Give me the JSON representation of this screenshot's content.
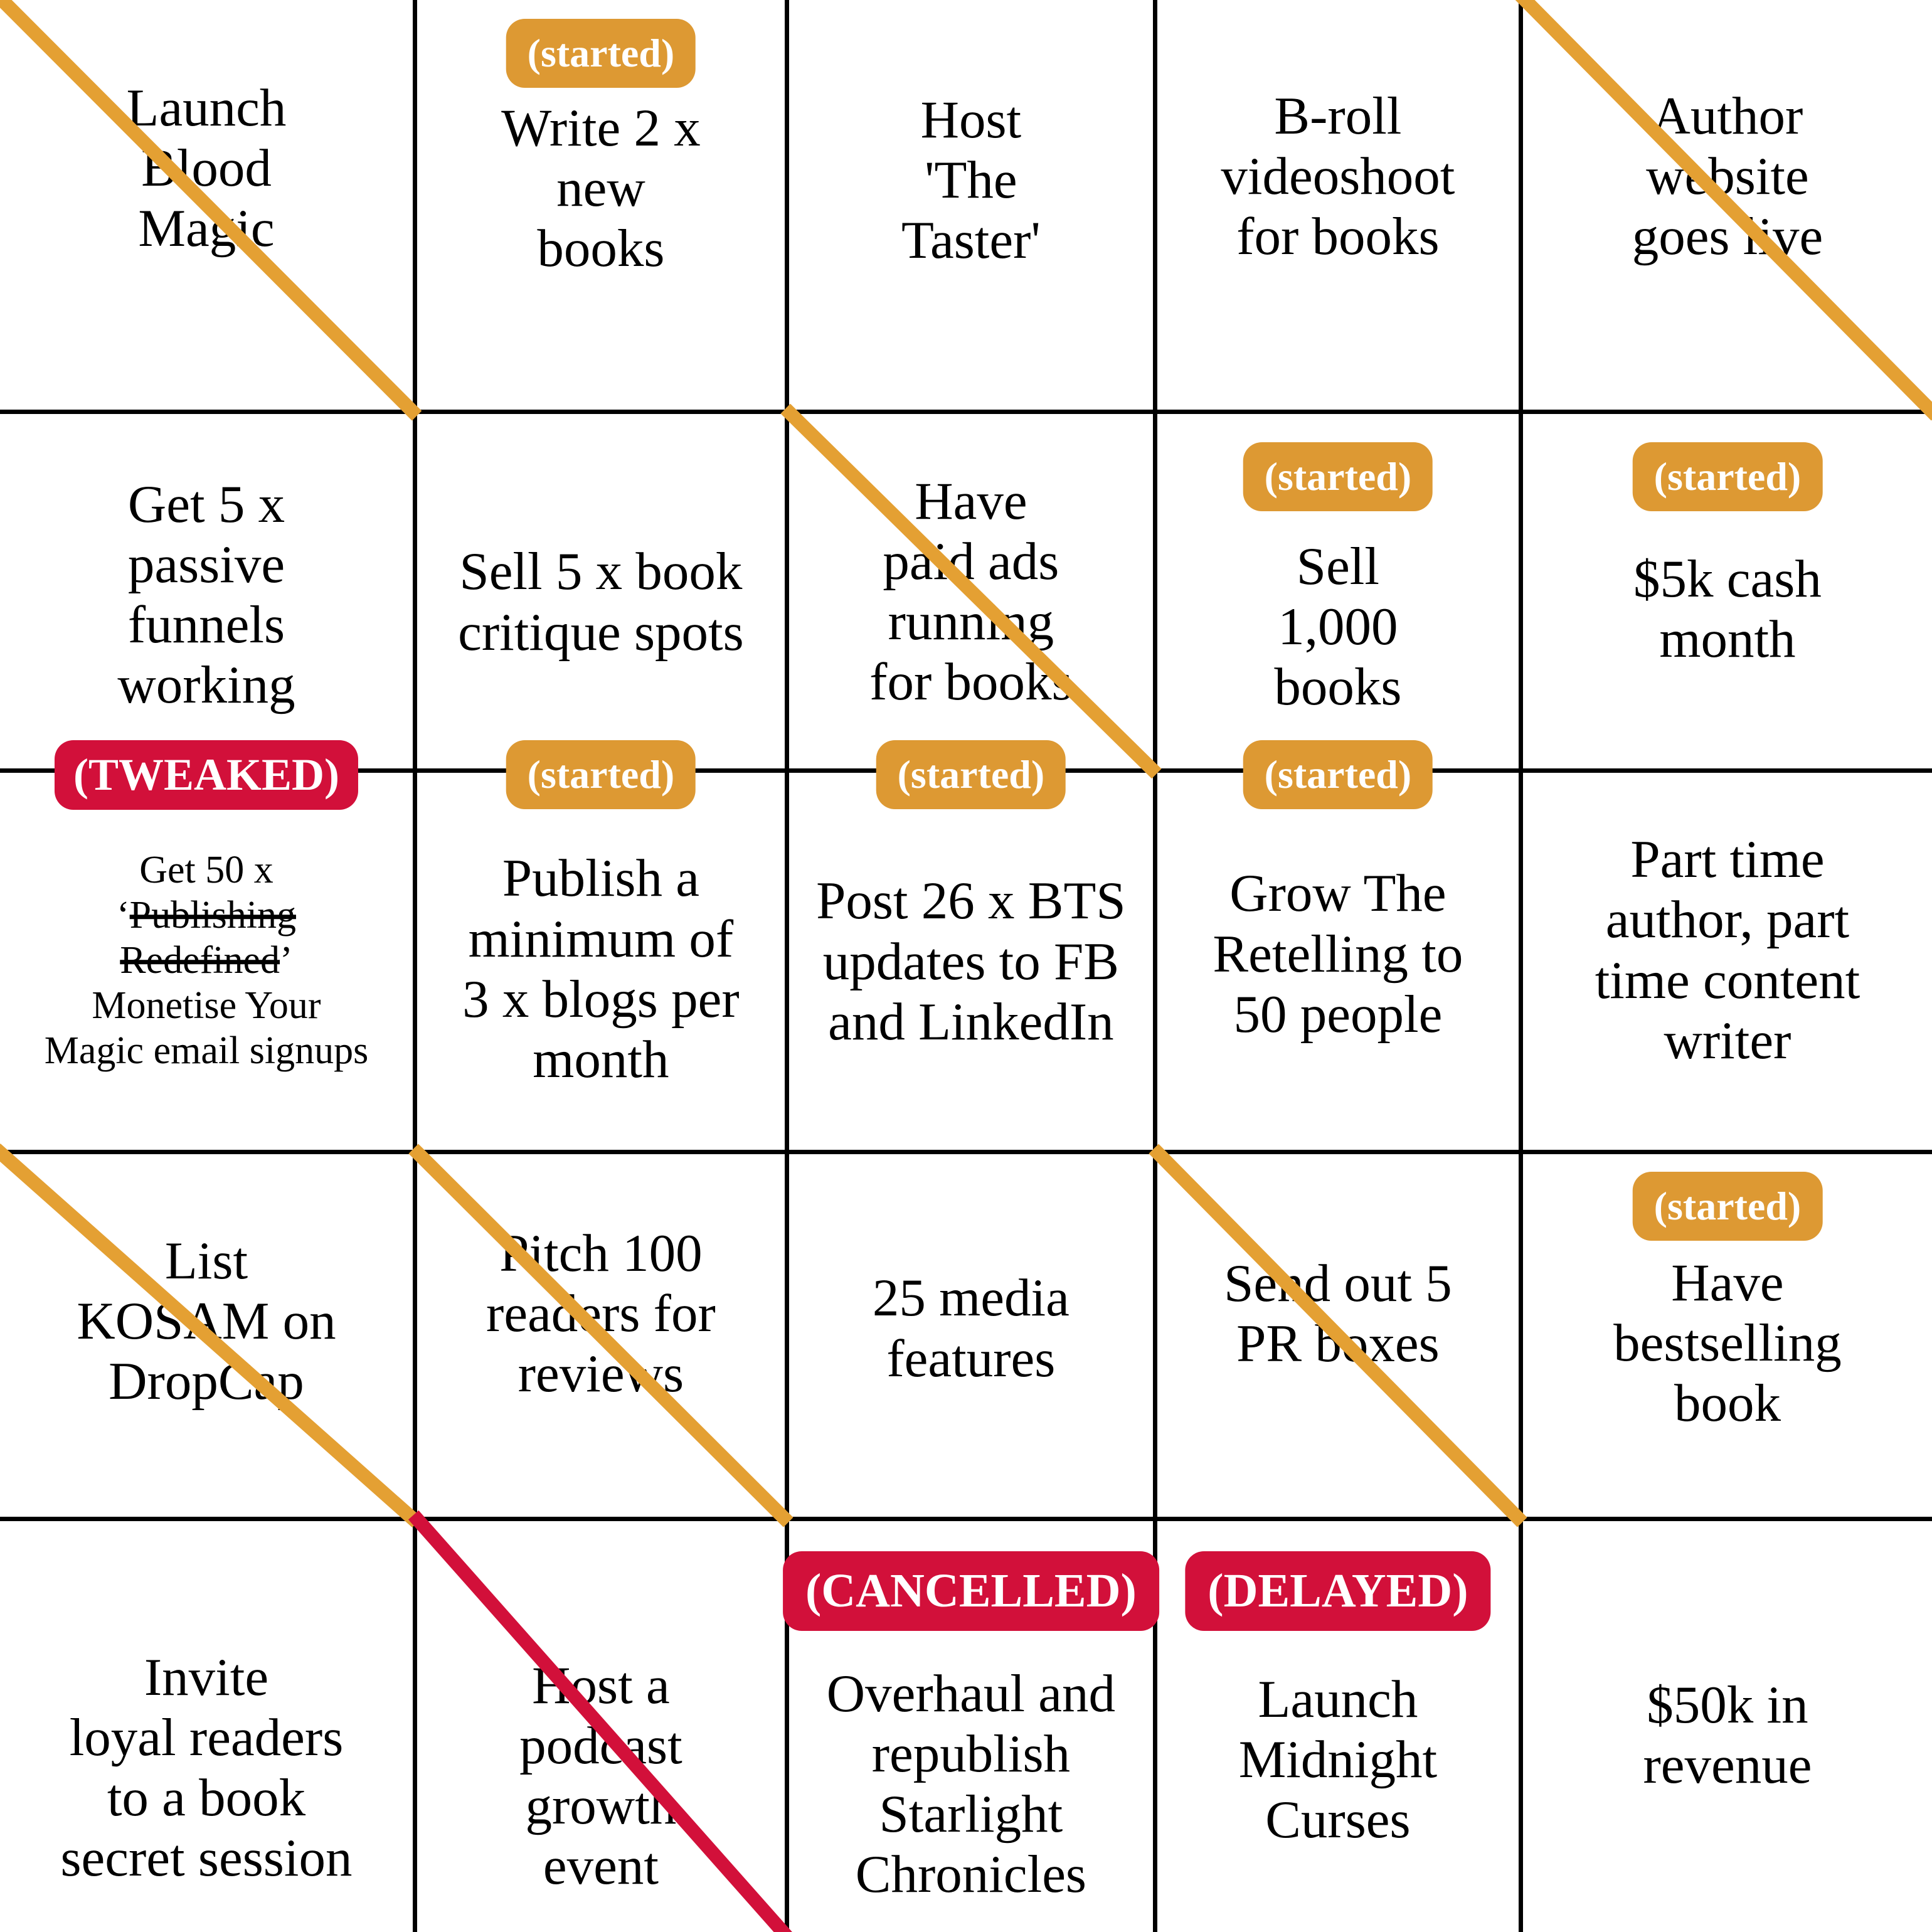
{
  "card": {
    "kind": "goal-bingo-card",
    "rows": 5,
    "cols": 5
  },
  "colors": {
    "background": "#FFFFFF",
    "grid_line": "#000000",
    "text": "#000000",
    "badge_text": "#FFFFFF",
    "orange": "#DD9933",
    "orange_line": "#E4A033",
    "crimson": "#D2103A",
    "crimson_line": "#D2103A"
  },
  "badge_labels": {
    "started": "(started)",
    "tweaked": "(TWEAKED)",
    "cancelled": "(CANCELLED)",
    "delayed": "(DELAYED)"
  },
  "cells": [
    {
      "name": "r1c1",
      "lines": [
        "Launch",
        "Blood",
        "Magic"
      ],
      "badge": null,
      "strike_color": "orange_line",
      "small": false
    },
    {
      "name": "r1c2",
      "lines": [
        "Write 2 x",
        "new",
        "books"
      ],
      "badge": {
        "label": "(started)",
        "color": "orange"
      },
      "strike_color": null,
      "small": false
    },
    {
      "name": "r1c3",
      "lines": [
        "Host",
        "'The",
        "Taster'"
      ],
      "badge": null,
      "strike_color": null,
      "small": false
    },
    {
      "name": "r1c4",
      "lines": [
        "B-roll",
        "videoshoot",
        "for books"
      ],
      "badge": null,
      "strike_color": null,
      "small": false
    },
    {
      "name": "r1c5",
      "lines": [
        "Author",
        "website",
        "goes live"
      ],
      "badge": null,
      "strike_color": "orange_line",
      "small": false
    },
    {
      "name": "r2c1",
      "lines": [
        "Get 5 x",
        "passive",
        "funnels",
        "working"
      ],
      "badge": null,
      "strike_color": null,
      "small": false
    },
    {
      "name": "r2c2",
      "lines": [
        "Sell 5 x book",
        "critique spots"
      ],
      "badge": null,
      "strike_color": null,
      "small": false
    },
    {
      "name": "r2c3",
      "lines": [
        "Have",
        "paid ads",
        "running",
        "for books"
      ],
      "badge": null,
      "strike_color": "orange_line",
      "small": false
    },
    {
      "name": "r2c4",
      "lines": [
        "Sell",
        "1,000",
        "books"
      ],
      "badge": {
        "label": "(started)",
        "color": "orange"
      },
      "strike_color": null,
      "small": false
    },
    {
      "name": "r2c5",
      "lines": [
        "$5k cash",
        "month"
      ],
      "badge": {
        "label": "(started)",
        "color": "orange"
      },
      "strike_color": null,
      "small": false
    },
    {
      "name": "r3c1",
      "lines": [
        "Get 50 x",
        {
          "pre": "‘",
          "struck": "Publishing",
          "post": ""
        },
        {
          "pre": "",
          "struck": "Redefined",
          "post": "’"
        },
        "Monetise Your",
        "Magic email signups"
      ],
      "badge": {
        "label": "(TWEAKED)",
        "color": "crimson"
      },
      "strike_color": null,
      "small": true
    },
    {
      "name": "r3c2",
      "lines": [
        "Publish a",
        "minimum of",
        "3 x blogs per",
        "month"
      ],
      "badge": {
        "label": "(started)",
        "color": "orange"
      },
      "strike_color": null,
      "small": false
    },
    {
      "name": "r3c3",
      "lines": [
        "Post 26 x BTS",
        "updates to FB",
        "and LinkedIn"
      ],
      "badge": {
        "label": "(started)",
        "color": "orange"
      },
      "strike_color": null,
      "small": false
    },
    {
      "name": "r3c4",
      "lines": [
        "Grow The",
        "Retelling to",
        "50 people"
      ],
      "badge": {
        "label": "(started)",
        "color": "orange"
      },
      "strike_color": null,
      "small": false
    },
    {
      "name": "r3c5",
      "lines": [
        "Part time",
        "author, part",
        "time content",
        "writer"
      ],
      "badge": null,
      "strike_color": null,
      "small": false
    },
    {
      "name": "r4c1",
      "lines": [
        "List",
        "KOSAM on",
        "DropCap"
      ],
      "badge": null,
      "strike_color": "orange_line",
      "small": false
    },
    {
      "name": "r4c2",
      "lines": [
        "Pitch 100",
        "readers for",
        "reviews"
      ],
      "badge": null,
      "strike_color": "orange_line",
      "small": false
    },
    {
      "name": "r4c3",
      "lines": [
        "25 media",
        "features"
      ],
      "badge": null,
      "strike_color": null,
      "small": false
    },
    {
      "name": "r4c4",
      "lines": [
        "Send out 5",
        "PR boxes"
      ],
      "badge": null,
      "strike_color": "orange_line",
      "small": false
    },
    {
      "name": "r4c5",
      "lines": [
        "Have",
        "bestselling",
        "book"
      ],
      "badge": {
        "label": "(started)",
        "color": "orange"
      },
      "strike_color": null,
      "small": false
    },
    {
      "name": "r5c1",
      "lines": [
        "Invite",
        "loyal readers",
        "to a book",
        "secret session"
      ],
      "badge": null,
      "strike_color": null,
      "small": false
    },
    {
      "name": "r5c2",
      "lines": [
        "Host a",
        "podcast",
        "growth",
        "event"
      ],
      "badge": null,
      "strike_color": "crimson_line",
      "small": false
    },
    {
      "name": "r5c3",
      "lines": [
        "Overhaul and",
        "republish",
        "Starlight",
        "Chronicles"
      ],
      "badge": {
        "label": "(CANCELLED)",
        "color": "crimson"
      },
      "strike_color": null,
      "small": false
    },
    {
      "name": "r5c4",
      "lines": [
        "Launch",
        "Midnight",
        "Curses"
      ],
      "badge": {
        "label": "(DELAYED)",
        "color": "crimson"
      },
      "strike_color": null,
      "small": false
    },
    {
      "name": "r5c5",
      "lines": [
        "$50k in",
        "revenue"
      ],
      "badge": null,
      "strike_color": null,
      "small": false
    }
  ]
}
